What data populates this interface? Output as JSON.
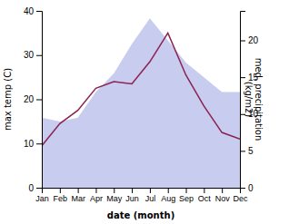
{
  "chart_data": {
    "type": "line",
    "categories": [
      "Jan",
      "Feb",
      "Mar",
      "Apr",
      "May",
      "Jun",
      "Jul",
      "Aug",
      "Sep",
      "Oct",
      "Nov",
      "Dec"
    ],
    "series": [
      {
        "type": "area",
        "axis": "y2",
        "color": "#c8ccee",
        "values": [
          9.5,
          9.0,
          9.5,
          13.0,
          15.5,
          19.5,
          23.0,
          20.0,
          17.0,
          15.0,
          13.0,
          13.0
        ]
      },
      {
        "type": "line",
        "color": "#8b2252",
        "values": [
          9.5,
          14.5,
          17.5,
          22.5,
          24.0,
          23.5,
          28.5,
          35.0,
          25.5,
          18.5,
          12.5,
          11.0
        ]
      }
    ],
    "xlabel": "date (month)",
    "ylabel": "max temp (C)",
    "y2label": "med. precipitation\n(kg/m2)",
    "ylim": [
      0,
      40
    ],
    "yticks": [
      0,
      10,
      20,
      30,
      40
    ],
    "y2lim": [
      0,
      24
    ],
    "y2ticks": [
      0,
      5,
      10,
      15,
      20
    ],
    "grid": false
  }
}
